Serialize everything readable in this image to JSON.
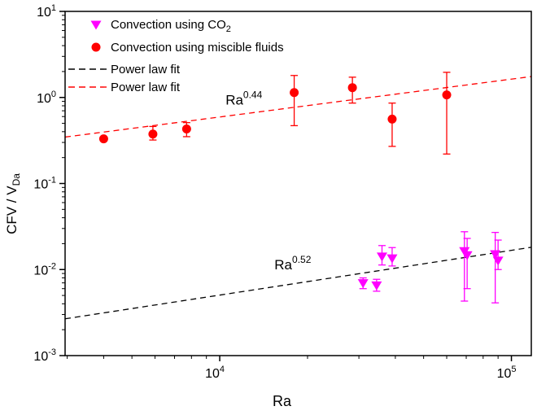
{
  "figure": {
    "background": "#ffffff",
    "frame_color": "#000000"
  },
  "chart_data": {
    "type": "scatter",
    "title": "",
    "xlabel": "Ra",
    "ylabel": {
      "base": "CFV / V",
      "subscript": "Da"
    },
    "x_scale": "log",
    "y_scale": "log",
    "xlim": [
      2950,
      117000
    ],
    "ylim": [
      0.001,
      10
    ],
    "x_major_ticks": [
      10000,
      100000
    ],
    "y_major_ticks": [
      10,
      1,
      0.1,
      0.01,
      0.001
    ],
    "grid": false,
    "legend_position": "top-left-inside",
    "legend": [
      {
        "type": "marker",
        "marker": "triangle-down",
        "color": "#FF00FF",
        "label": "Convection using CO",
        "subscript": "2"
      },
      {
        "type": "marker",
        "marker": "circle",
        "color": "#FF0000",
        "label": "Convection using miscible fluids",
        "subscript": ""
      },
      {
        "type": "line",
        "color": "#000000",
        "label": "Power law fit",
        "subscript": ""
      },
      {
        "type": "line",
        "color": "#FF0000",
        "label": "Power law fit",
        "subscript": ""
      }
    ],
    "series": [
      {
        "name": "Convection using CO2",
        "marker": "triangle-down",
        "color": "#FF00FF",
        "points": [
          {
            "x": 31000,
            "y": 0.007,
            "ylo": 0.006,
            "yhi": 0.008
          },
          {
            "x": 34500,
            "y": 0.0066,
            "ylo": 0.0056,
            "yhi": 0.0077
          },
          {
            "x": 36000,
            "y": 0.0143,
            "ylo": 0.0113,
            "yhi": 0.019
          },
          {
            "x": 39000,
            "y": 0.0136,
            "ylo": 0.011,
            "yhi": 0.018
          },
          {
            "x": 69000,
            "y": 0.0165,
            "ylo": 0.0043,
            "yhi": 0.0275
          },
          {
            "x": 70500,
            "y": 0.0148,
            "ylo": 0.006,
            "yhi": 0.023
          },
          {
            "x": 88000,
            "y": 0.0152,
            "ylo": 0.0041,
            "yhi": 0.027
          },
          {
            "x": 90000,
            "y": 0.0128,
            "ylo": 0.01,
            "yhi": 0.022
          }
        ]
      },
      {
        "name": "Convection using miscible fluids",
        "marker": "circle",
        "color": "#FF0000",
        "points": [
          {
            "x": 4000,
            "y": 0.33
          },
          {
            "x": 5900,
            "y": 0.375,
            "ylo": 0.32,
            "yhi": 0.46
          },
          {
            "x": 7700,
            "y": 0.43,
            "ylo": 0.35,
            "yhi": 0.51
          },
          {
            "x": 18000,
            "y": 1.14,
            "ylo": 0.47,
            "yhi": 1.8
          },
          {
            "x": 28500,
            "y": 1.3,
            "ylo": 0.86,
            "yhi": 1.72
          },
          {
            "x": 39000,
            "y": 0.56,
            "ylo": 0.27,
            "yhi": 0.86
          },
          {
            "x": 60000,
            "y": 1.07,
            "ylo": 0.22,
            "yhi": 1.96
          }
        ]
      }
    ],
    "fits": [
      {
        "name": "Power law fit (CO2)",
        "color": "#000000",
        "coefficient": 4.2e-05,
        "exponent": 0.52,
        "annotation": {
          "base": "Ra",
          "exponent": "0.52",
          "at_x": 17800,
          "at_y": 0.0115
        }
      },
      {
        "name": "Power law fit (miscible)",
        "color": "#FF0000",
        "coefficient": 0.0103,
        "exponent": 0.44,
        "annotation": {
          "base": "Ra",
          "exponent": "0.44",
          "at_x": 12100,
          "at_y": 0.94
        }
      }
    ]
  }
}
